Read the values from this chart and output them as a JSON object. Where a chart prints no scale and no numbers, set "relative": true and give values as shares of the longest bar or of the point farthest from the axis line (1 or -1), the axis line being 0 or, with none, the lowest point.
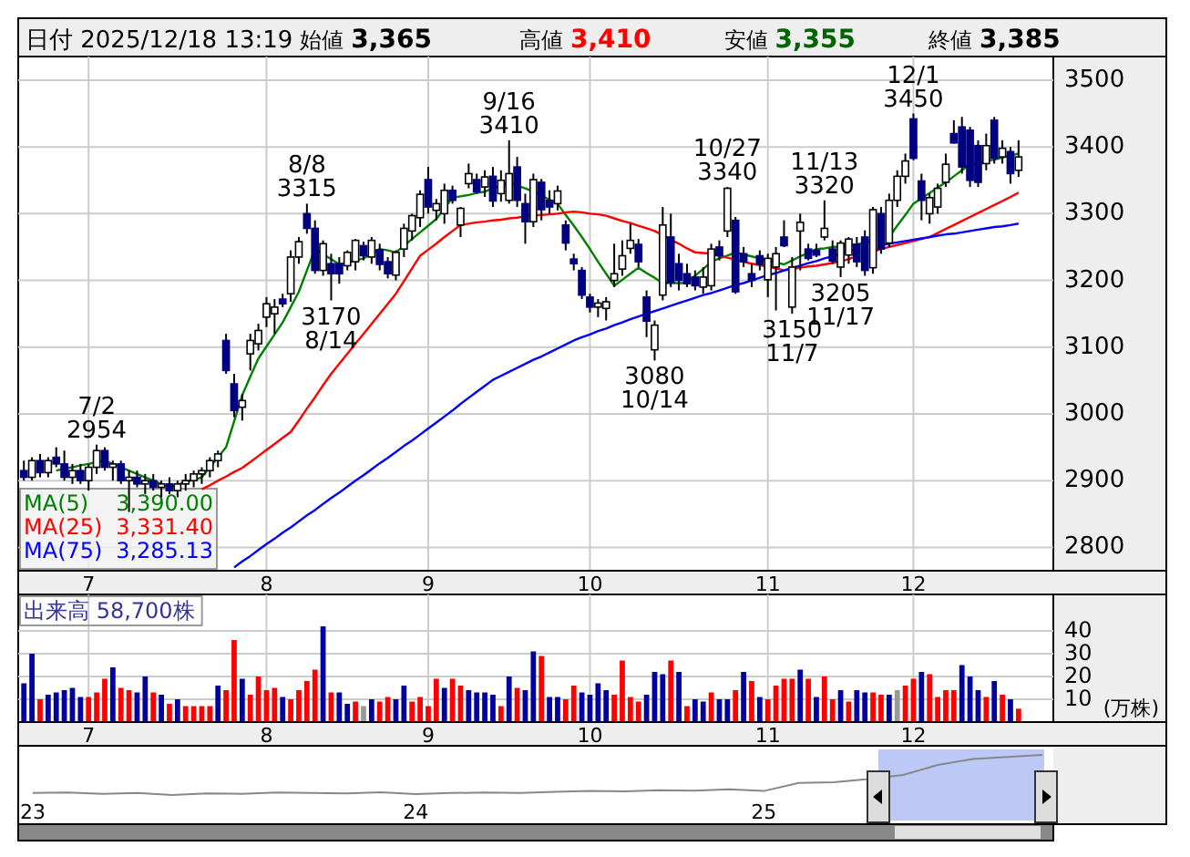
{
  "chart_data": [
    {
      "type": "candlestick",
      "title": "日付 2025/12/18 13:19",
      "annotations": [
        "始値",
        "3,365",
        "高値",
        "3,410",
        "安値",
        "3,355",
        "終値",
        "3,385",
        "3,390.00",
        "3,331.40",
        "3,285.13",
        {
          "text": "7/2",
          "y": 2954
        },
        {
          "text": "2954",
          "y": 2954
        },
        {
          "text": "8/8",
          "y": 3315
        },
        {
          "text": "3315",
          "y": 3315
        },
        {
          "text": "3170",
          "y": 3170
        },
        {
          "text": "8/14",
          "y": 3170
        },
        {
          "text": "9/16",
          "y": 3410
        },
        {
          "text": "3410",
          "y": 3410
        },
        {
          "text": "3080",
          "y": 3080
        },
        {
          "text": "10/14",
          "y": 3080
        },
        {
          "text": "10/27",
          "y": 3340
        },
        {
          "text": "3340",
          "y": 3340
        },
        {
          "text": "3150",
          "y": 3150
        },
        {
          "text": "11/7",
          "y": 3150
        },
        {
          "text": "11/13",
          "y": 3320
        },
        {
          "text": "3320",
          "y": 3320
        },
        {
          "text": "3205",
          "y": 3205
        },
        {
          "text": "11/17",
          "y": 3205
        },
        {
          "text": "12/1",
          "y": 3450
        },
        {
          "text": "3450",
          "y": 3450
        }
      ],
      "categories": [
        null,
        null,
        null,
        null,
        null,
        null,
        null,
        null,
        "7",
        null,
        null,
        null,
        null,
        null,
        null,
        null,
        null,
        null,
        null,
        null,
        null,
        null,
        null,
        null,
        null,
        null,
        null,
        null,
        null,
        null,
        "8",
        null,
        null,
        null,
        null,
        null,
        null,
        null,
        null,
        null,
        null,
        null,
        null,
        null,
        null,
        null,
        null,
        null,
        null,
        null,
        "9",
        null,
        null,
        null,
        null,
        null,
        null,
        null,
        null,
        null,
        null,
        null,
        null,
        null,
        null,
        null,
        null,
        null,
        null,
        null,
        "10",
        null,
        null,
        null,
        null,
        null,
        null,
        null,
        null,
        null,
        null,
        null,
        null,
        null,
        null,
        null,
        null,
        null,
        null,
        null,
        null,
        null,
        "11",
        null,
        null,
        null,
        null,
        null,
        null,
        null,
        null,
        null,
        null,
        null,
        null,
        null,
        null,
        null,
        null,
        null,
        "12",
        null,
        null,
        null,
        null,
        null,
        null,
        null,
        null,
        null,
        null,
        null,
        null,
        null
      ],
      "ohlc": [
        [
          2915,
          2930,
          2900,
          2905
        ],
        [
          2905,
          2935,
          2900,
          2930
        ],
        [
          2930,
          2940,
          2905,
          2912
        ],
        [
          2912,
          2935,
          2905,
          2930
        ],
        [
          2935,
          2950,
          2920,
          2925
        ],
        [
          2925,
          2945,
          2900,
          2905
        ],
        [
          2905,
          2925,
          2895,
          2915
        ],
        [
          2915,
          2925,
          2895,
          2900
        ],
        [
          2900,
          2925,
          2885,
          2920
        ],
        [
          2920,
          2954,
          2910,
          2945
        ],
        [
          2945,
          2950,
          2915,
          2920
        ],
        [
          2920,
          2930,
          2900,
          2925
        ],
        [
          2925,
          2930,
          2895,
          2900
        ],
        [
          2900,
          2915,
          2853,
          2905
        ],
        [
          2905,
          2915,
          2890,
          2895
        ],
        [
          2895,
          2910,
          2880,
          2900
        ],
        [
          2900,
          2910,
          2885,
          2890
        ],
        [
          2890,
          2900,
          2875,
          2895
        ],
        [
          2895,
          2905,
          2880,
          2885
        ],
        [
          2885,
          2900,
          2875,
          2895
        ],
        [
          2895,
          2910,
          2885,
          2900
        ],
        [
          2900,
          2915,
          2890,
          2910
        ],
        [
          2910,
          2920,
          2895,
          2915
        ],
        [
          2915,
          2935,
          2905,
          2930
        ],
        [
          2930,
          2945,
          2920,
          2940
        ],
        [
          3110,
          3120,
          3060,
          3065
        ],
        [
          3045,
          3060,
          2995,
          3005
        ],
        [
          3010,
          3030,
          2990,
          3020
        ],
        [
          3090,
          3120,
          3065,
          3110
        ],
        [
          3105,
          3135,
          3095,
          3125
        ],
        [
          3145,
          3175,
          3130,
          3165
        ],
        [
          3150,
          3172,
          3120,
          3160
        ],
        [
          3172,
          3180,
          3160,
          3165
        ],
        [
          3180,
          3245,
          3168,
          3235
        ],
        [
          3235,
          3265,
          3225,
          3258
        ],
        [
          3300,
          3315,
          3270,
          3278
        ],
        [
          3278,
          3290,
          3210,
          3215
        ],
        [
          3215,
          3260,
          3207,
          3255
        ],
        [
          3225,
          3240,
          3170,
          3210
        ],
        [
          3225,
          3235,
          3195,
          3210
        ],
        [
          3222,
          3245,
          3215,
          3242
        ],
        [
          3228,
          3262,
          3215,
          3260
        ],
        [
          3252,
          3258,
          3230,
          3237
        ],
        [
          3235,
          3265,
          3225,
          3260
        ],
        [
          3246,
          3255,
          3215,
          3224
        ],
        [
          3228,
          3235,
          3203,
          3210
        ],
        [
          3208,
          3245,
          3200,
          3242
        ],
        [
          3247,
          3285,
          3235,
          3278
        ],
        [
          3274,
          3300,
          3260,
          3297
        ],
        [
          3294,
          3335,
          3280,
          3329
        ],
        [
          3351,
          3370,
          3300,
          3310
        ],
        [
          3305,
          3322,
          3290,
          3315
        ],
        [
          3300,
          3345,
          3285,
          3335
        ],
        [
          3335,
          3342,
          3315,
          3320
        ],
        [
          3283,
          3310,
          3265,
          3308
        ],
        [
          3345,
          3375,
          3338,
          3360
        ],
        [
          3351,
          3360,
          3330,
          3333
        ],
        [
          3340,
          3365,
          3325,
          3355
        ],
        [
          3356,
          3370,
          3310,
          3319
        ],
        [
          3330,
          3365,
          3318,
          3350
        ],
        [
          3320,
          3410,
          3315,
          3360
        ],
        [
          3370,
          3385,
          3310,
          3320
        ],
        [
          3315,
          3330,
          3255,
          3288
        ],
        [
          3288,
          3360,
          3280,
          3351
        ],
        [
          3347,
          3352,
          3290,
          3306
        ],
        [
          3320,
          3335,
          3300,
          3310
        ],
        [
          3315,
          3342,
          3305,
          3334
        ],
        [
          3283,
          3290,
          3245,
          3256
        ],
        [
          3232,
          3240,
          3215,
          3225
        ],
        [
          3215,
          3220,
          3172,
          3178
        ],
        [
          3175,
          3180,
          3152,
          3160
        ],
        [
          3160,
          3172,
          3145,
          3166
        ],
        [
          3158,
          3175,
          3140,
          3168
        ],
        [
          3200,
          3255,
          3190,
          3210
        ],
        [
          3217,
          3260,
          3207,
          3237
        ],
        [
          3248,
          3285,
          3240,
          3260
        ],
        [
          3254,
          3262,
          3220,
          3228
        ],
        [
          3175,
          3185,
          3115,
          3139
        ],
        [
          3096,
          3140,
          3080,
          3133
        ],
        [
          3178,
          3310,
          3170,
          3283
        ],
        [
          3265,
          3300,
          3190,
          3197
        ],
        [
          3225,
          3240,
          3185,
          3200
        ],
        [
          3210,
          3225,
          3190,
          3195
        ],
        [
          3205,
          3215,
          3185,
          3192
        ],
        [
          3190,
          3220,
          3180,
          3205
        ],
        [
          3192,
          3255,
          3185,
          3247
        ],
        [
          3250,
          3260,
          3230,
          3237
        ],
        [
          3274,
          3340,
          3265,
          3338
        ],
        [
          3290,
          3295,
          3180,
          3183
        ],
        [
          3240,
          3250,
          3220,
          3228
        ],
        [
          3210,
          3225,
          3190,
          3200
        ],
        [
          3237,
          3245,
          3215,
          3224
        ],
        [
          3201,
          3240,
          3175,
          3233
        ],
        [
          3220,
          3250,
          3155,
          3240
        ],
        [
          3265,
          3290,
          3250,
          3252
        ],
        [
          3160,
          3235,
          3150,
          3220
        ],
        [
          3274,
          3300,
          3215,
          3287
        ],
        [
          3247,
          3255,
          3230,
          3233
        ],
        [
          3245,
          3255,
          3235,
          3238
        ],
        [
          3265,
          3320,
          3260,
          3278
        ],
        [
          3247,
          3260,
          3225,
          3229
        ],
        [
          3220,
          3260,
          3205,
          3256
        ],
        [
          3238,
          3265,
          3225,
          3262
        ],
        [
          3254,
          3265,
          3220,
          3228
        ],
        [
          3265,
          3275,
          3207,
          3215
        ],
        [
          3219,
          3310,
          3210,
          3306
        ],
        [
          3300,
          3310,
          3240,
          3247
        ],
        [
          3256,
          3330,
          3250,
          3320
        ],
        [
          3320,
          3365,
          3310,
          3356
        ],
        [
          3356,
          3390,
          3345,
          3379
        ],
        [
          3442,
          3450,
          3380,
          3383
        ],
        [
          3349,
          3360,
          3290,
          3320
        ],
        [
          3300,
          3330,
          3285,
          3324
        ],
        [
          3310,
          3345,
          3300,
          3338
        ],
        [
          3347,
          3390,
          3340,
          3374
        ],
        [
          3420,
          3440,
          3405,
          3406
        ],
        [
          3430,
          3445,
          3360,
          3370
        ],
        [
          3425,
          3430,
          3340,
          3350
        ],
        [
          3402,
          3410,
          3340,
          3347
        ],
        [
          3375,
          3420,
          3365,
          3402
        ],
        [
          3440,
          3445,
          3375,
          3383
        ],
        [
          3385,
          3410,
          3375,
          3398
        ],
        [
          3393,
          3400,
          3345,
          3360
        ],
        [
          3365,
          3410,
          3355,
          3385
        ]
      ],
      "series": [
        {
          "type": "line",
          "name": "MA(5)",
          "color": "#008000",
          "values": [
            null,
            null,
            null,
            null,
            2915,
            2918,
            2920,
            2923,
            2925,
            2928,
            2930,
            2925,
            2920,
            2915,
            2910,
            2905,
            2900,
            2895,
            2890,
            2894,
            2898,
            2901,
            2905,
            2920,
            2935,
            2950,
            2989,
            3028,
            3056,
            3083,
            3101,
            3119,
            3137,
            3160,
            3183,
            3215,
            3247,
            3239,
            3232,
            3224,
            3227,
            3230,
            3233,
            3240,
            3247,
            3245,
            3242,
            3252,
            3262,
            3272,
            3282,
            3292,
            3308,
            3324,
            3326,
            3328,
            3331,
            3333,
            3338,
            3342,
            3347,
            3342,
            3338,
            3333,
            3327,
            3321,
            3315,
            3298,
            3282,
            3265,
            3247,
            3228,
            3210,
            3192,
            3201,
            3210,
            3219,
            3211,
            3204,
            3196,
            3196,
            3196,
            3196,
            3207,
            3217,
            3228,
            3233,
            3237,
            3242,
            3239,
            3236,
            3233,
            3230,
            3227,
            3224,
            3230,
            3236,
            3241,
            3247,
            3248,
            3250,
            3251,
            3252,
            3254,
            3257,
            3259,
            null,
            3265,
            3282,
            3298,
            3315,
            3323,
            3331,
            3339,
            3347,
            3356,
            3365,
            3374,
            3376,
            3379,
            3381,
            3384,
            3387,
            3390
          ]
        },
        {
          "type": "line",
          "name": "MA(25)",
          "color": "#ff0000",
          "values": [
            null,
            null,
            null,
            null,
            null,
            null,
            null,
            null,
            null,
            null,
            null,
            null,
            null,
            null,
            null,
            null,
            null,
            null,
            null,
            null,
            null,
            null,
            2887,
            2893,
            2900,
            2906,
            2913,
            2919,
            2928,
            2937,
            2946,
            2955,
            2964,
            2973,
            2990,
            3008,
            3025,
            3043,
            3060,
            3075,
            3090,
            3105,
            3120,
            3135,
            3150,
            3165,
            3180,
            3199,
            3218,
            3237,
            3246,
            3255,
            3265,
            3274,
            3283,
            3285,
            3287,
            3288,
            3290,
            3291,
            3293,
            3294,
            3296,
            3297,
            3298,
            3299,
            3300,
            3302,
            3303,
            3302,
            3300,
            3299,
            3297,
            3293,
            3289,
            3286,
            3282,
            3278,
            3274,
            3268,
            3261,
            3255,
            3248,
            3242,
            3241,
            3240,
            3237,
            3234,
            3231,
            3228,
            3225,
            3223,
            3220,
            3218,
            3215,
            3217,
            3219,
            3221,
            3222,
            3224,
            3226,
            3228,
            3232,
            3236,
            null,
            3243,
            3247,
            3250,
            3253,
            3256,
            3259,
            3262,
            3265,
            3271,
            3277,
            3283,
            3289,
            3295,
            3301,
            3307,
            3313,
            3319,
            3325,
            3331.4
          ]
        },
        {
          "type": "line",
          "name": "MA(75)",
          "color": "#0000ff",
          "values": [
            null,
            null,
            null,
            null,
            null,
            null,
            null,
            null,
            null,
            null,
            null,
            null,
            null,
            null,
            null,
            null,
            null,
            null,
            null,
            null,
            null,
            null,
            null,
            null,
            null,
            null,
            2770,
            2779,
            2787,
            2796,
            2805,
            2813,
            2822,
            2830,
            2839,
            2848,
            2856,
            2865,
            2874,
            2882,
            2891,
            2900,
            2908,
            2917,
            2926,
            2934,
            2943,
            2952,
            2960,
            2969,
            2978,
            2987,
            2996,
            3005,
            3015,
            3024,
            3033,
            3042,
            3051,
            3057,
            3063,
            3069,
            3075,
            3081,
            3086,
            3092,
            3098,
            3104,
            3110,
            3115,
            3119,
            3124,
            3128,
            3133,
            3137,
            3142,
            3146,
            3150,
            3154,
            3158,
            3162,
            3166,
            3170,
            3174,
            3178,
            3181,
            3185,
            3189,
            3193,
            3196,
            3200,
            3204,
            3208,
            3211,
            3215,
            3219,
            3222,
            3226,
            3229,
            3233,
            3236,
            3240,
            3244,
            3247,
            null,
            null,
            3253,
            3255,
            3257,
            3259,
            3261,
            3263,
            3265,
            3267,
            3269,
            3270,
            3272,
            3274,
            3276,
            3278,
            3280,
            3281,
            3283,
            3285.13
          ]
        }
      ],
      "ylim": [
        2765,
        3530
      ],
      "yticks": [
        2800,
        2900,
        3000,
        3100,
        3200,
        3300,
        3400,
        3500
      ],
      "grid": true,
      "legend": "bottom left"
    },
    {
      "type": "bar",
      "title": "出来高 58,700株",
      "ylabel": "(万株)",
      "categories": [
        null,
        null,
        null,
        null,
        null,
        null,
        null,
        null,
        "7",
        null,
        null,
        null,
        null,
        null,
        null,
        null,
        null,
        null,
        null,
        null,
        null,
        null,
        null,
        null,
        null,
        null,
        null,
        null,
        null,
        null,
        "8",
        null,
        null,
        null,
        null,
        null,
        null,
        null,
        null,
        null,
        null,
        null,
        null,
        null,
        null,
        null,
        null,
        null,
        null,
        null,
        "9",
        null,
        null,
        null,
        null,
        null,
        null,
        null,
        null,
        null,
        null,
        null,
        null,
        null,
        null,
        null,
        null,
        null,
        null,
        null,
        "10",
        null,
        null,
        null,
        null,
        null,
        null,
        null,
        null,
        null,
        null,
        null,
        null,
        null,
        null,
        null,
        null,
        null,
        null,
        null,
        null,
        null,
        "11",
        null,
        null,
        null,
        null,
        null,
        null,
        null,
        null,
        null,
        null,
        null,
        null,
        null,
        null,
        null,
        null,
        null,
        "12",
        null,
        null,
        null,
        null,
        null,
        null,
        null,
        null,
        null,
        null,
        null,
        null,
        null
      ],
      "values": [
        17,
        30,
        10,
        12,
        13,
        14,
        15,
        11,
        11,
        13,
        19,
        24,
        15,
        14,
        13,
        20,
        13,
        12,
        8,
        10,
        7,
        7,
        7,
        7,
        16,
        14,
        36,
        19,
        12,
        20,
        14,
        15,
        11,
        10,
        14,
        18,
        23,
        42,
        13,
        13,
        8,
        9,
        7,
        10,
        9,
        11,
        10,
        16,
        9,
        11,
        7,
        19,
        15,
        19,
        16,
        14,
        13,
        13,
        12,
        7,
        20,
        15,
        14,
        31,
        29,
        11,
        11,
        10,
        16,
        13,
        12,
        17,
        14,
        12,
        27,
        11,
        9,
        12,
        22,
        21,
        27,
        22,
        7,
        10,
        9,
        13,
        10,
        10,
        14,
        22,
        18,
        11,
        10,
        16,
        19,
        19,
        23,
        19,
        11,
        20,
        10,
        14,
        9,
        14,
        13,
        13,
        12,
        12,
        14,
        16,
        19,
        22,
        21,
        11,
        14,
        14,
        25,
        20,
        14,
        11,
        18,
        12,
        10,
        5.87
      ],
      "colors": [
        "#0000a0",
        "#0000a0",
        "#ff0000",
        "#0000a0",
        "#0000a0",
        "#0000a0",
        "#0000a0",
        "#0000a0",
        "#ff0000",
        "#ff0000",
        "#ff0000",
        "#0000a0",
        "#ff0000",
        "#ff0000",
        "#0000a0",
        "#0000a0",
        "#ff0000",
        "#0000a0",
        "#ff0000",
        "#0000a0",
        "#ff0000",
        "#ff0000",
        "#ff0000",
        "#ff0000",
        "#0000a0",
        "#ff0000",
        "#ff0000",
        "#0000a0",
        "#ff0000",
        "#ff0000",
        "#ff0000",
        "#ff0000",
        "#0000a0",
        "#ff0000",
        "#ff0000",
        "#ff0000",
        "#ff0000",
        "#0000a0",
        "#ff0000",
        "#0000a0",
        "#0000a0",
        "#ff0000",
        "#999999",
        "#0000a0",
        "#ff0000",
        "#ff0000",
        "#0000a0",
        "#0000a0",
        "#ff0000",
        "#ff0000",
        "#ff0000",
        "#ff0000",
        "#0000a0",
        "#ff0000",
        "#ff0000",
        "#0000a0",
        "#0000a0",
        "#0000a0",
        "#0000a0",
        "#ff0000",
        "#0000a0",
        "#ff0000",
        "#0000a0",
        "#0000a0",
        "#ff0000",
        "#0000a0",
        "#0000a0",
        "#ff0000",
        "#ff0000",
        "#0000a0",
        "#0000a0",
        "#0000a0",
        "#0000a0",
        "#ff0000",
        "#ff0000",
        "#ff0000",
        "#ff0000",
        "#0000a0",
        "#0000a0",
        "#0000a0",
        "#ff0000",
        "#0000a0",
        "#ff0000",
        "#0000a0",
        "#0000a0",
        "#ff0000",
        "#0000a0",
        "#0000a0",
        "#ff0000",
        "#0000a0",
        "#ff0000",
        "#0000a0",
        "#ff0000",
        "#ff0000",
        "#ff0000",
        "#ff0000",
        "#0000a0",
        "#ff0000",
        "#0000a0",
        "#ff0000",
        "#ff0000",
        "#0000a0",
        "#ff0000",
        "#0000a0",
        "#0000a0",
        "#ff0000",
        "#ff0000",
        "#0000a0",
        "#999999",
        "#ff0000",
        "#ff0000",
        "#0000a0",
        "#ff0000",
        "#ff0000",
        "#ff0000",
        "#ff0000",
        "#0000a0",
        "#0000a0",
        "#0000a0",
        "#ff0000",
        "#0000a0",
        "#ff0000",
        "#0000a0",
        "#ff0000"
      ],
      "ylim": [
        0,
        56
      ],
      "yticks": [
        10,
        20,
        30,
        40
      ],
      "grid": true
    },
    {
      "type": "line",
      "relative": true,
      "color": "#888888",
      "categories": [
        "23",
        null,
        null,
        null,
        null,
        null,
        null,
        null,
        null,
        null,
        null,
        "24",
        null,
        null,
        null,
        null,
        null,
        null,
        null,
        null,
        null,
        "25",
        null,
        null,
        null,
        null,
        null,
        null,
        null,
        null
      ],
      "values": [
        0.05,
        0.06,
        0.03,
        0.05,
        0,
        0.04,
        0.03,
        0.06,
        0.05,
        0.04,
        0.07,
        0.02,
        0.05,
        0.06,
        0.05,
        0.08,
        0.1,
        0.09,
        0.12,
        0.11,
        0.14,
        0.1,
        0.3,
        0.32,
        0.4,
        0.5,
        0.75,
        0.9,
        0.95,
        1
      ]
    }
  ]
}
